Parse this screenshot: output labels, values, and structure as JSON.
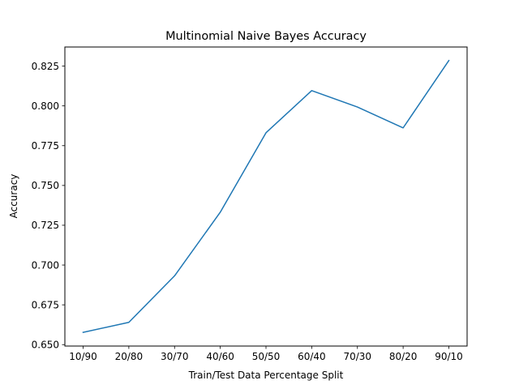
{
  "chart_data": {
    "type": "line",
    "title": "Multinomial Naive Bayes Accuracy",
    "xlabel": "Train/Test Data Percentage Split",
    "ylabel": "Accuracy",
    "categories": [
      "10/90",
      "20/80",
      "30/70",
      "40/60",
      "50/50",
      "60/40",
      "70/30",
      "80/20",
      "90/10"
    ],
    "series": [
      {
        "values": [
          0.6577,
          0.664,
          0.6932,
          0.7332,
          0.7831,
          0.8096,
          0.7993,
          0.7862,
          0.8285
        ],
        "color": "#1f77b4"
      }
    ],
    "yticks": [
      "0.650",
      "0.675",
      "0.700",
      "0.725",
      "0.750",
      "0.775",
      "0.800",
      "0.825"
    ],
    "ylim": [
      0.6491,
      0.837
    ],
    "grid": false,
    "legend": "none"
  }
}
